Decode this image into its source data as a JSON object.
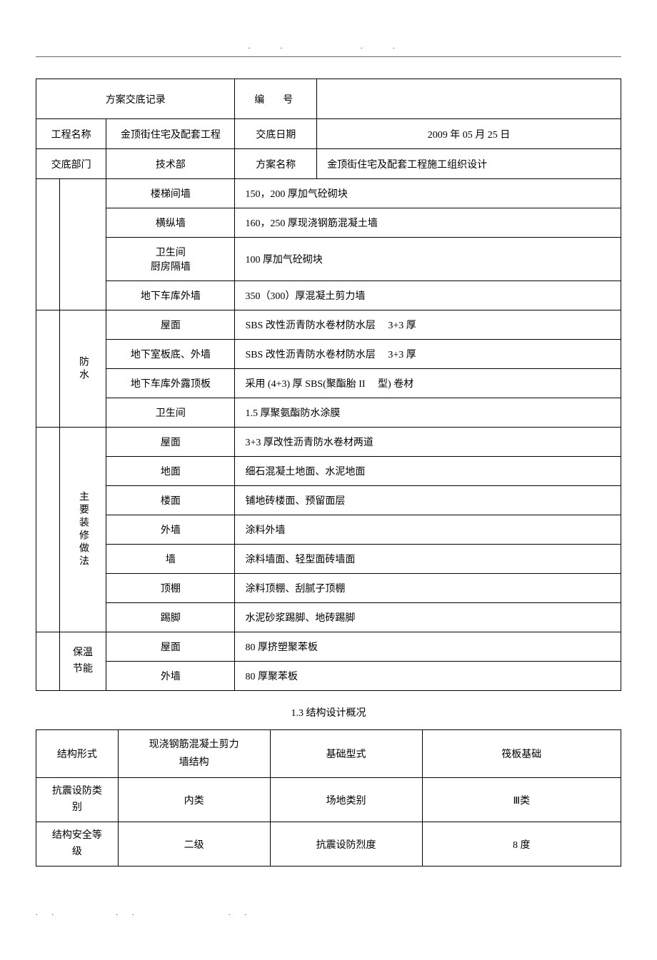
{
  "header": {
    "record_title": "方案交底记录",
    "number_label": "编　号",
    "number_value": "",
    "project_label": "工程名称",
    "project_value": "金顶街住宅及配套工程",
    "date_label": "交底日期",
    "date_value": "2009 年 05 月 25 日",
    "dept_label": "交底部门",
    "dept_value": "技术部",
    "plan_label": "方案名称",
    "plan_value": "金顶街住宅及配套工程施工组织设计"
  },
  "construction": {
    "rows": [
      {
        "label": "楼梯间墙",
        "value": "150，200 厚加气砼砌块"
      },
      {
        "label": "横纵墙",
        "value": "160，250 厚现浇钢筋混凝土墙"
      },
      {
        "label": "卫生间\n厨房隔墙",
        "value": "100 厚加气砼砌块"
      },
      {
        "label": "地下车库外墙",
        "value": "350（300）厚混凝土剪力墙"
      }
    ]
  },
  "waterproof": {
    "title": "防水",
    "rows": [
      {
        "label": "屋面",
        "value": "SBS 改性沥青防水卷材防水层　 3+3 厚"
      },
      {
        "label": "地下室板底、外墙",
        "value": "SBS 改性沥青防水卷材防水层　 3+3 厚"
      },
      {
        "label": "地下车库外露顶板",
        "value": "采用 (4+3) 厚 SBS(聚酯胎 II　 型) 卷材"
      },
      {
        "label": "卫生间",
        "value": "1.5 厚聚氨酯防水涂膜"
      }
    ]
  },
  "decoration": {
    "title": "主要装修做法",
    "rows": [
      {
        "label": "屋面",
        "value": "3+3 厚改性沥青防水卷材两道"
      },
      {
        "label": "地面",
        "value": "细石混凝土地面、水泥地面"
      },
      {
        "label": "楼面",
        "value": "铺地砖楼面、预留面层"
      },
      {
        "label": "外墙",
        "value": "涂料外墙"
      },
      {
        "label": "墙",
        "value": "涂料墙面、轻型面砖墙面"
      },
      {
        "label": "顶棚",
        "value": "涂料顶棚、刮腻子顶棚"
      },
      {
        "label": "踢脚",
        "value": "水泥砂浆踢脚、地砖踢脚"
      }
    ]
  },
  "insulation": {
    "title": "保温节能",
    "rows": [
      {
        "label": "屋面",
        "value": "80 厚挤塑聚苯板"
      },
      {
        "label": "外墙",
        "value": "80 厚聚苯板"
      }
    ]
  },
  "structure": {
    "section_title": "1.3 结构设计概况",
    "rows": [
      {
        "c1": "结构形式",
        "c2": "现浇钢筋混凝土剪力墙结构",
        "c3": "基础型式",
        "c4": "筏板基础"
      },
      {
        "c1": "抗震设防类别",
        "c2": "内类",
        "c3": "场地类别",
        "c4": "Ⅲ类"
      },
      {
        "c1": "结构安全等级",
        "c2": "二级",
        "c3": "抗震设防烈度",
        "c4": "8 度"
      }
    ]
  },
  "colors": {
    "border": "#000000",
    "background": "#ffffff",
    "text": "#000000"
  }
}
